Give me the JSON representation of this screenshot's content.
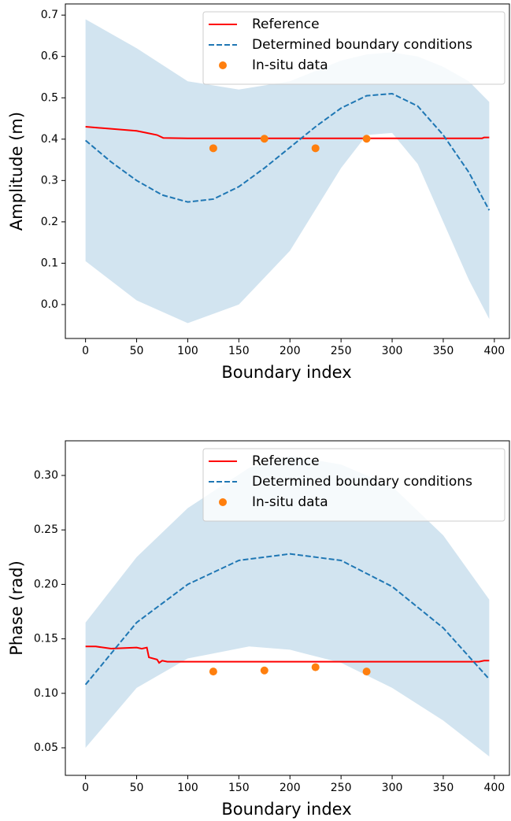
{
  "chart_data": [
    {
      "type": "line",
      "xlabel": "Boundary index",
      "ylabel": "Amplitude (m)",
      "xlim": [
        -19.75,
        414.75
      ],
      "ylim": [
        -0.082,
        0.727
      ],
      "xticks": [
        0,
        50,
        100,
        150,
        200,
        250,
        300,
        350,
        400
      ],
      "yticks": [
        {
          "value": 0,
          "label": "0.0"
        },
        0.1,
        0.2,
        0.3,
        0.4,
        0.5,
        0.6,
        0.7
      ],
      "legend": "upper right",
      "series": [
        {
          "kind": "band",
          "color": "#1f77b4",
          "x": [
            0,
            50,
            100,
            150,
            200,
            250,
            275,
            300,
            325,
            350,
            375,
            395
          ],
          "lower": [
            0.105,
            0.01,
            -0.045,
            0.0,
            0.13,
            0.33,
            0.41,
            0.415,
            0.34,
            0.2,
            0.06,
            -0.035
          ],
          "upper": [
            0.69,
            0.62,
            0.54,
            0.52,
            0.54,
            0.59,
            0.605,
            0.61,
            0.6,
            0.575,
            0.54,
            0.49
          ]
        },
        {
          "kind": "line",
          "name": "Reference",
          "color": "#ff0000",
          "style": "solid",
          "x": [
            0,
            25,
            50,
            60,
            70,
            76,
            100,
            200,
            300,
            388,
            390,
            395
          ],
          "values": [
            0.43,
            0.425,
            0.42,
            0.415,
            0.41,
            0.403,
            0.402,
            0.402,
            0.402,
            0.402,
            0.404,
            0.404
          ]
        },
        {
          "kind": "line",
          "name": "Determined boundary conditions",
          "color": "#1f77b4",
          "style": "dashed",
          "x": [
            0,
            25,
            50,
            75,
            100,
            125,
            150,
            175,
            200,
            225,
            250,
            275,
            300,
            325,
            350,
            375,
            395
          ],
          "values": [
            0.397,
            0.345,
            0.3,
            0.265,
            0.248,
            0.255,
            0.285,
            0.33,
            0.38,
            0.43,
            0.475,
            0.505,
            0.51,
            0.48,
            0.41,
            0.32,
            0.228
          ]
        },
        {
          "kind": "scatter",
          "name": "In-situ data",
          "color": "#ff7f0e",
          "x": [
            125,
            175,
            225,
            275
          ],
          "values": [
            0.378,
            0.401,
            0.378,
            0.401
          ]
        }
      ]
    },
    {
      "type": "line",
      "xlabel": "Boundary index",
      "ylabel": "Phase (rad)",
      "xlim": [
        -19.75,
        414.75
      ],
      "ylim": [
        0.0247,
        0.3318
      ],
      "xticks": [
        0,
        50,
        100,
        150,
        200,
        250,
        300,
        350,
        400
      ],
      "yticks": [
        0.05,
        {
          "value": 0.1,
          "label": "0.10"
        },
        0.15,
        {
          "value": 0.2,
          "label": "0.20"
        },
        0.25,
        {
          "value": 0.3,
          "label": "0.30"
        }
      ],
      "legend": "upper right",
      "series": [
        {
          "kind": "band",
          "color": "#1f77b4",
          "x": [
            0,
            50,
            100,
            160,
            200,
            250,
            300,
            350,
            395
          ],
          "lower": [
            0.05,
            0.105,
            0.132,
            0.143,
            0.14,
            0.128,
            0.105,
            0.075,
            0.042
          ],
          "upper": [
            0.165,
            0.225,
            0.27,
            0.307,
            0.318,
            0.31,
            0.29,
            0.245,
            0.186
          ]
        },
        {
          "kind": "line",
          "name": "Reference",
          "color": "#ff0000",
          "style": "solid",
          "x": [
            0,
            10,
            25,
            50,
            55,
            60,
            62,
            70,
            72,
            75,
            80,
            200,
            385,
            390,
            395
          ],
          "values": [
            0.143,
            0.143,
            0.141,
            0.142,
            0.141,
            0.142,
            0.133,
            0.131,
            0.128,
            0.13,
            0.129,
            0.129,
            0.129,
            0.13,
            0.13
          ]
        },
        {
          "kind": "line",
          "name": "Determined boundary conditions",
          "color": "#1f77b4",
          "style": "dashed",
          "x": [
            0,
            50,
            100,
            150,
            200,
            250,
            300,
            350,
            395
          ],
          "values": [
            0.108,
            0.165,
            0.2,
            0.222,
            0.228,
            0.222,
            0.198,
            0.16,
            0.113
          ]
        },
        {
          "kind": "scatter",
          "name": "In-situ data",
          "color": "#ff7f0e",
          "x": [
            125,
            175,
            225,
            275
          ],
          "values": [
            0.12,
            0.121,
            0.124,
            0.12
          ]
        }
      ]
    }
  ]
}
